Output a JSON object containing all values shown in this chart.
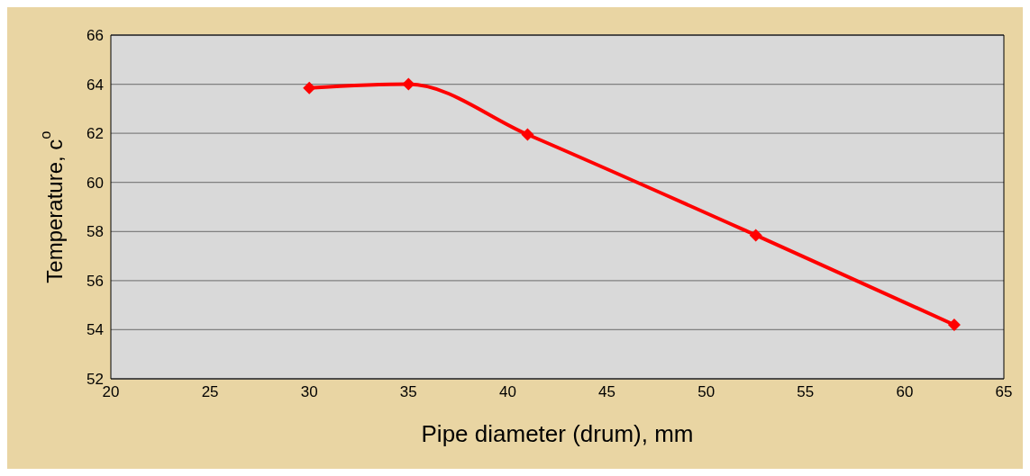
{
  "chart_data": {
    "type": "line",
    "xlabel": "Pipe diameter (drum), mm",
    "ylabel": "Temperature, c$^{o}$",
    "x": [
      30,
      35,
      41,
      52.5,
      62.5
    ],
    "series": [
      {
        "color": "#ff0000",
        "values": [
          63.85,
          64.0,
          61.95,
          57.85,
          54.2
        ]
      }
    ],
    "xlim": [
      20,
      65
    ],
    "xticks": [
      20,
      25,
      30,
      35,
      40,
      45,
      50,
      55,
      60,
      65
    ],
    "ylim": [
      52,
      66
    ],
    "yticks": [
      52,
      54,
      56,
      58,
      60,
      62,
      64,
      66
    ],
    "grid": "y",
    "legend": false,
    "marker": "diamond",
    "line_style": "solid"
  }
}
